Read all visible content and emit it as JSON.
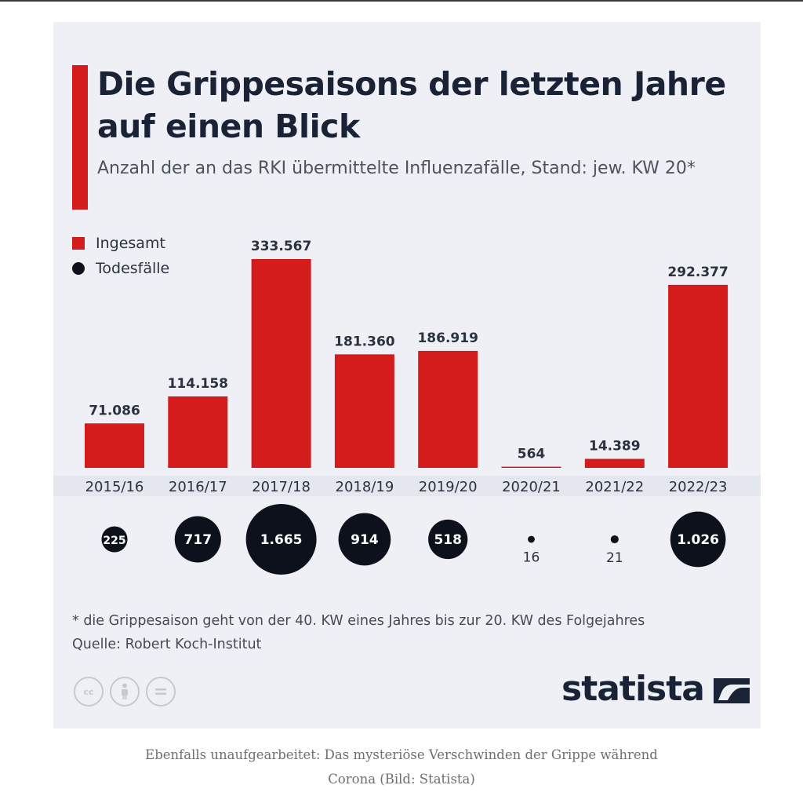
{
  "header": {
    "title": "Die Grippesaisons der letzten Jahre auf einen Blick",
    "subtitle": "Anzahl der an das RKI übermittelte Influenzafälle, Stand: jew. KW 20*"
  },
  "legend": {
    "total_label": "Ingesamt",
    "deaths_label": "Todesfälle"
  },
  "chart_data": {
    "type": "bar",
    "title": "Die Grippesaisons der letzten Jahre auf einen Blick",
    "subtitle": "Anzahl der an das RKI übermittelte Influenzafälle, Stand: jew. KW 20*",
    "categories": [
      "2015/16",
      "2016/17",
      "2017/18",
      "2018/19",
      "2019/20",
      "2020/21",
      "2021/22",
      "2022/23"
    ],
    "series": [
      {
        "name": "Ingesamt",
        "values": [
          71086,
          114158,
          333567,
          181360,
          186919,
          564,
          14389,
          292377
        ],
        "labels": [
          "71.086",
          "114.158",
          "333.567",
          "181.360",
          "186.919",
          "564",
          "14.389",
          "292.377"
        ],
        "color": "#d41c1c"
      },
      {
        "name": "Todesfälle",
        "values": [
          225,
          717,
          1665,
          914,
          518,
          16,
          21,
          1026
        ],
        "labels": [
          "225",
          "717",
          "1.665",
          "914",
          "518",
          "16",
          "21",
          "1.026"
        ],
        "color": "#0d111c"
      }
    ],
    "ylim": [
      0,
      333567
    ],
    "grid": false,
    "legend_position": "top-left"
  },
  "footer": {
    "note": "* die Grippesaison geht von der 40. KW eines Jahres bis zur 20. KW des Folgejahres",
    "source": "Quelle: Robert Koch-Institut",
    "cc_icons": [
      "cc",
      "by",
      "nd"
    ],
    "brand": "statista"
  },
  "caption": {
    "line1": "Ebenfalls unaufgearbeitet: Das mysteriöse Verschwinden der Grippe während",
    "line2": "Corona (Bild: Statista)"
  }
}
